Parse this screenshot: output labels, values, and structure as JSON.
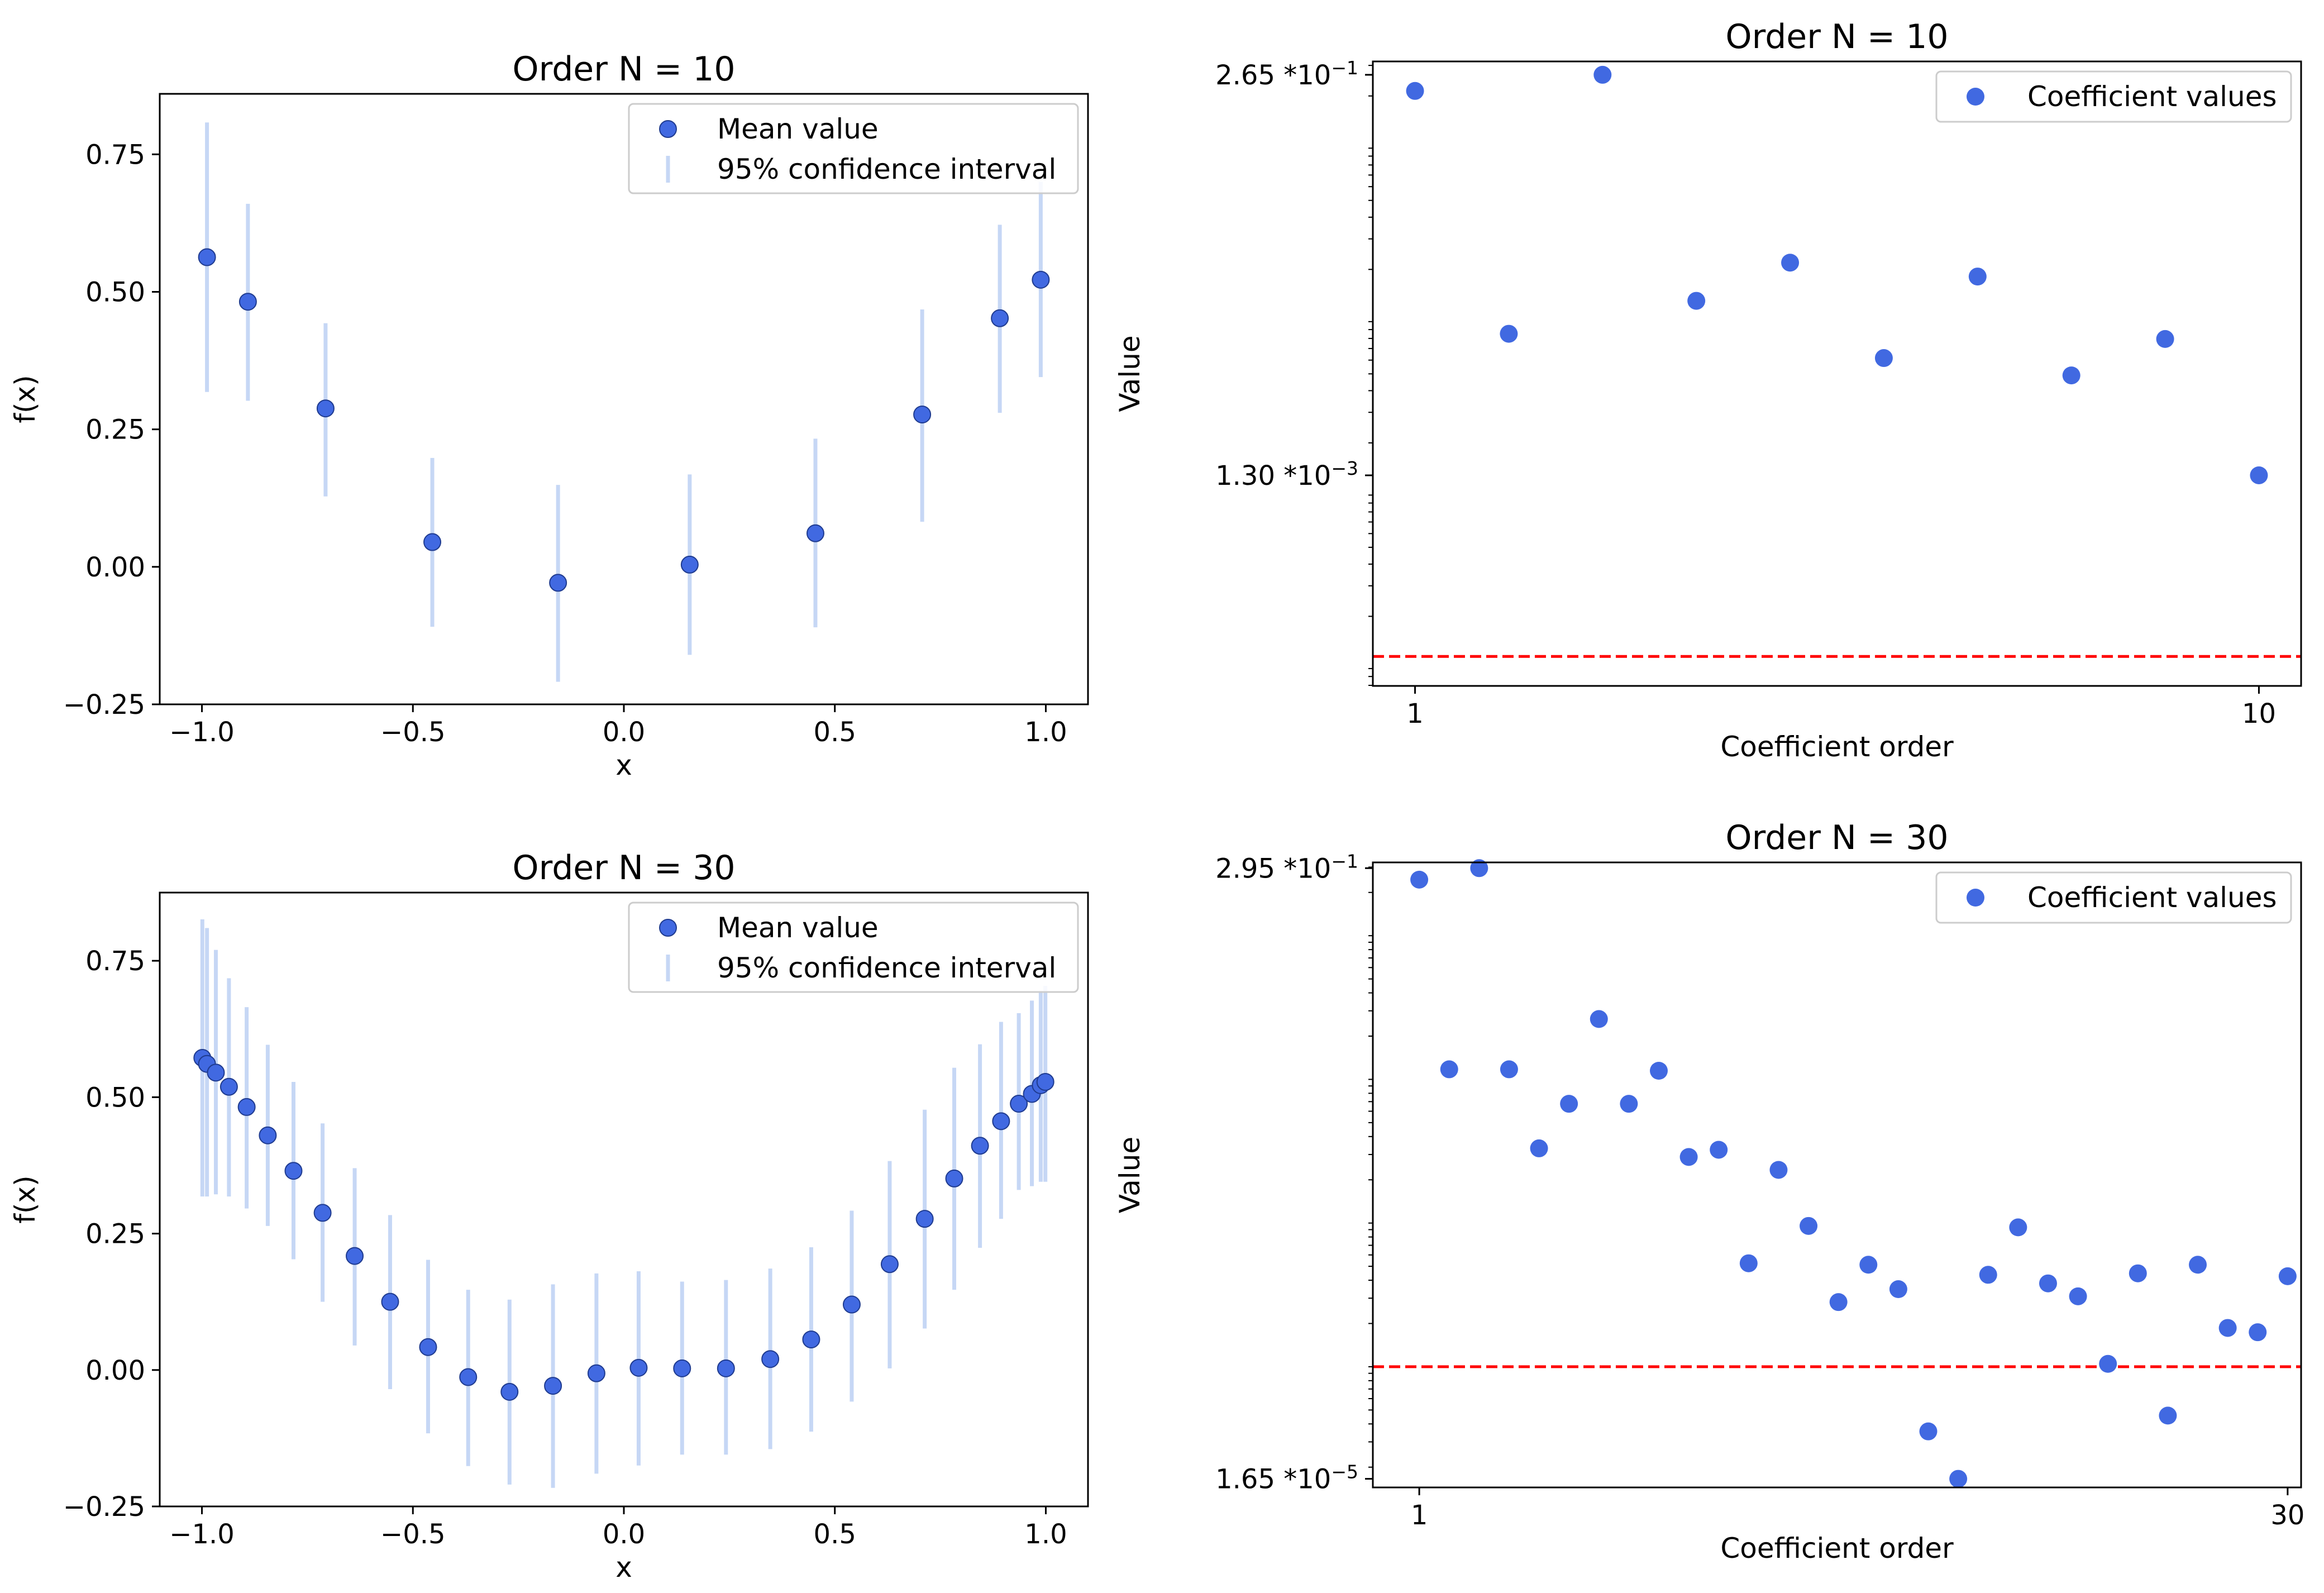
{
  "colors": {
    "marker": "#4169e1",
    "ci": "#c6d7f5",
    "threshold": "#ff0000",
    "axes": "#000000",
    "legend_edge": "#cccccc"
  },
  "chart_data": [
    {
      "id": "p1",
      "type": "scatter",
      "title": "Order N = 10",
      "xlabel": "x",
      "ylabel": "f(x)",
      "xlim": [
        -1.1,
        1.1
      ],
      "ylim": [
        -0.25,
        0.86
      ],
      "xticks": [
        -1.0,
        -0.5,
        0.0,
        0.5,
        1.0
      ],
      "xtick_labels": [
        "−1.0",
        "−0.5",
        "0.0",
        "0.5",
        "1.0"
      ],
      "yticks": [
        -0.25,
        0.0,
        0.25,
        0.5,
        0.75
      ],
      "ytick_labels": [
        "−0.25",
        "0.00",
        "0.25",
        "0.50",
        "0.75"
      ],
      "legend": {
        "loc": "upper-right",
        "entries": [
          "Mean value",
          "95% confidence interval"
        ]
      },
      "series": [
        {
          "name": "Mean value",
          "x": [
            -0.988,
            -0.891,
            -0.707,
            -0.454,
            -0.156,
            0.156,
            0.454,
            0.707,
            0.891,
            0.988
          ],
          "y": [
            0.563,
            0.482,
            0.288,
            0.045,
            -0.029,
            0.004,
            0.061,
            0.277,
            0.452,
            0.522
          ],
          "ci_low": [
            0.318,
            0.302,
            0.128,
            -0.109,
            -0.209,
            -0.16,
            -0.11,
            0.082,
            0.28,
            0.345
          ],
          "ci_high": [
            0.808,
            0.66,
            0.443,
            0.198,
            0.149,
            0.168,
            0.233,
            0.468,
            0.622,
            0.7
          ]
        }
      ]
    },
    {
      "id": "p2",
      "type": "scatter",
      "title": "Order N = 10",
      "xlabel": "Coefficient order",
      "ylabel": "Value",
      "yscale": "log",
      "xlim": [
        0.55,
        10.45
      ],
      "ylim_log10": [
        -4.1,
        -0.5
      ],
      "xticks": [
        1,
        10
      ],
      "xtick_labels": [
        "1",
        "10"
      ],
      "ytick_labels": [
        {
          "log10": -0.577,
          "mantissa": "2.65",
          "exponent": "−1"
        },
        {
          "log10": -2.886,
          "mantissa": "1.30",
          "exponent": "−3"
        }
      ],
      "threshold_log10": -3.93,
      "legend": {
        "loc": "upper-right",
        "entries": [
          "Coefficient values"
        ]
      },
      "series": [
        {
          "name": "Coefficient values",
          "x": [
            1,
            2,
            3,
            4,
            5,
            6,
            7,
            8,
            9,
            10
          ],
          "log10": [
            -0.67,
            -2.07,
            -0.577,
            -1.88,
            -1.66,
            -2.21,
            -1.74,
            -2.31,
            -2.1,
            -2.886
          ]
        }
      ]
    },
    {
      "id": "p3",
      "type": "scatter",
      "title": "Order N = 30",
      "xlabel": "x",
      "ylabel": "f(x)",
      "xlim": [
        -1.1,
        1.1
      ],
      "ylim": [
        -0.25,
        0.875
      ],
      "xticks": [
        -1.0,
        -0.5,
        0.0,
        0.5,
        1.0
      ],
      "xtick_labels": [
        "−1.0",
        "−0.5",
        "0.0",
        "0.5",
        "1.0"
      ],
      "yticks": [
        -0.25,
        0.0,
        0.25,
        0.5,
        0.75
      ],
      "ytick_labels": [
        "−0.25",
        "0.00",
        "0.25",
        "0.50",
        "0.75"
      ],
      "legend": {
        "loc": "upper-right",
        "entries": [
          "Mean value",
          "95% confidence interval"
        ]
      },
      "series": [
        {
          "name": "Mean value",
          "x": [
            -0.999,
            -0.988,
            -0.967,
            -0.936,
            -0.894,
            -0.844,
            -0.783,
            -0.714,
            -0.638,
            -0.554,
            -0.464,
            -0.369,
            -0.271,
            -0.168,
            -0.065,
            0.035,
            0.138,
            0.242,
            0.347,
            0.444,
            0.54,
            0.63,
            0.713,
            0.783,
            0.844,
            0.894,
            0.936,
            0.967,
            0.988,
            0.999
          ],
          "y": [
            0.572,
            0.561,
            0.545,
            0.519,
            0.482,
            0.43,
            0.365,
            0.288,
            0.209,
            0.125,
            0.042,
            -0.013,
            -0.04,
            -0.029,
            -0.006,
            0.004,
            0.003,
            0.003,
            0.02,
            0.056,
            0.12,
            0.194,
            0.277,
            0.351,
            0.411,
            0.456,
            0.488,
            0.506,
            0.522,
            0.528
          ],
          "ci_low": [
            0.318,
            0.318,
            0.322,
            0.318,
            0.296,
            0.264,
            0.203,
            0.125,
            0.045,
            -0.035,
            -0.116,
            -0.176,
            -0.21,
            -0.216,
            -0.19,
            -0.175,
            -0.155,
            -0.155,
            -0.145,
            -0.113,
            -0.058,
            0.003,
            0.076,
            0.147,
            0.224,
            0.277,
            0.33,
            0.337,
            0.345,
            0.345
          ],
          "ci_high": [
            0.826,
            0.81,
            0.77,
            0.718,
            0.665,
            0.596,
            0.528,
            0.452,
            0.37,
            0.284,
            0.202,
            0.147,
            0.129,
            0.157,
            0.177,
            0.181,
            0.162,
            0.165,
            0.186,
            0.225,
            0.292,
            0.383,
            0.477,
            0.554,
            0.597,
            0.638,
            0.654,
            0.677,
            0.695,
            0.704
          ]
        }
      ]
    },
    {
      "id": "p4",
      "type": "scatter",
      "title": "Order N = 30",
      "xlabel": "Coefficient order",
      "ylabel": "Value",
      "yscale": "log",
      "xlim": [
        -0.55,
        30.45
      ],
      "ylim_log10": [
        -4.84,
        -0.49
      ],
      "xticks": [
        1,
        30
      ],
      "xtick_labels": [
        "1",
        "30"
      ],
      "ytick_labels": [
        {
          "log10": -0.53,
          "mantissa": "2.95",
          "exponent": "−1"
        },
        {
          "log10": -4.78,
          "mantissa": "1.65",
          "exponent": "−5"
        }
      ],
      "threshold_log10": -4.0,
      "legend": {
        "loc": "upper-right",
        "entries": [
          "Coefficient values"
        ]
      },
      "series": [
        {
          "name": "Coefficient values",
          "x": [
            1,
            2,
            3,
            4,
            5,
            6,
            7,
            8,
            9,
            10,
            11,
            12,
            13,
            14,
            15,
            16,
            17,
            18,
            19,
            20,
            21,
            22,
            23,
            24,
            25,
            26,
            27,
            28,
            29,
            30
          ],
          "log10": [
            -0.61,
            -1.93,
            -0.53,
            -1.93,
            -2.48,
            -2.17,
            -1.58,
            -2.17,
            -1.94,
            -2.54,
            -2.49,
            -3.28,
            -2.63,
            -3.02,
            -3.55,
            -3.29,
            -3.46,
            -4.45,
            -4.78,
            -3.36,
            -3.03,
            -3.42,
            -3.51,
            -3.98,
            -3.35,
            -4.34,
            -3.29,
            -3.73,
            -3.76,
            -3.37
          ]
        }
      ]
    }
  ]
}
